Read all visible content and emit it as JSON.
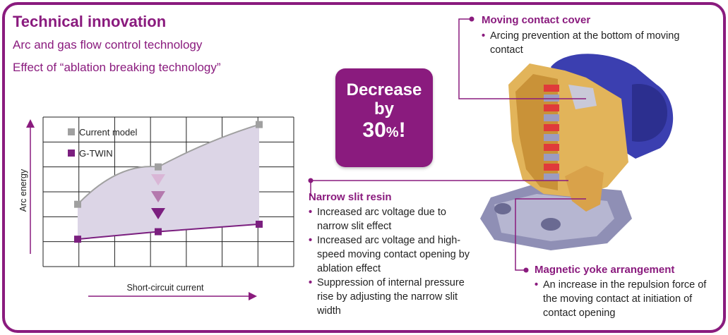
{
  "header": {
    "title": "Technical innovation",
    "subtitle1": "Arc and gas flow control technology",
    "subtitle2": "Effect of “ablation breaking technology”"
  },
  "badge": {
    "line1": "Decrease",
    "line2": "by",
    "value": "30",
    "unit": "%",
    "suffix": "!"
  },
  "callouts": {
    "moving_contact_cover": {
      "title": "Moving contact cover",
      "bullets": [
        "Arcing prevention at the bottom of moving contact"
      ]
    },
    "narrow_slit_resin": {
      "title": "Narrow slit resin",
      "bullets": [
        "Increased arc voltage due to narrow slit effect",
        "Increased arc voltage and high-speed moving contact opening by ablation effect",
        "Suppression of internal pressure rise by adjusting the narrow slit width"
      ]
    },
    "magnetic_yoke": {
      "title": "Magnetic yoke arrangement",
      "bullets": [
        "An increase in the repulsion force of the moving contact at initiation of contact opening"
      ]
    }
  },
  "colors": {
    "brand": "#8a1b7e",
    "current_model": "#a0a0a0",
    "g_twin": "#7b1f7f",
    "fill_area": "#dcd5e6"
  },
  "chart_data": {
    "type": "line",
    "title": "",
    "xlabel": "Short-circuit current",
    "ylabel": "Arc energy",
    "x": [
      1,
      2,
      3
    ],
    "xlim": [
      0,
      3
    ],
    "ylim": [
      0,
      6
    ],
    "grid": true,
    "legend": "top-left",
    "series": [
      {
        "name": "Current model",
        "color": "#a0a0a0",
        "values": [
          2.5,
          4.0,
          5.7
        ]
      },
      {
        "name": "G-TWIN",
        "color": "#7b1f7f",
        "values": [
          1.1,
          1.4,
          1.7
        ]
      }
    ]
  }
}
